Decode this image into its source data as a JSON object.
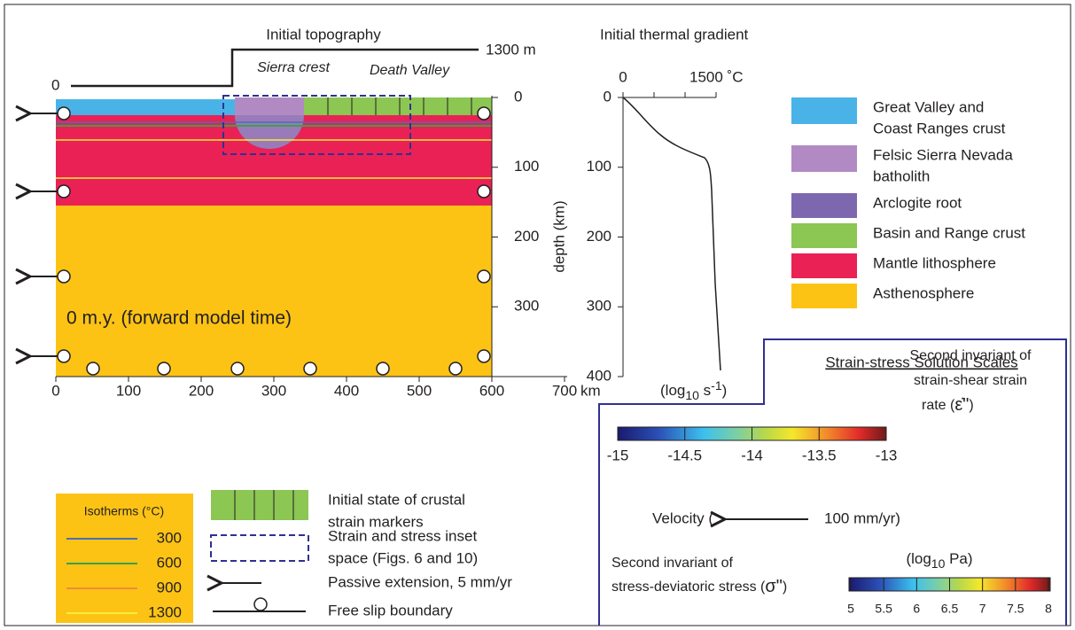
{
  "top_profile": {
    "title": "Initial topography",
    "left_label": "0",
    "right_label": "1300 m",
    "sierra": "Sierra crest",
    "death_valley": "Death Valley"
  },
  "model": {
    "time_label": "0 m.y. (forward model time)",
    "x_ticks": [
      0,
      100,
      200,
      300,
      400,
      500,
      600,
      700
    ],
    "x_unit": "km",
    "depth_ticks": [
      0,
      100,
      200,
      300
    ]
  },
  "thermal": {
    "title": "Initial thermal gradient",
    "temp_ticks": [
      {
        "value": 0,
        "label": "0"
      },
      {
        "value": 1500,
        "label": "1500 ˚C"
      }
    ],
    "depth_ticks": [
      0,
      100,
      200,
      300,
      400
    ],
    "depth_title": "depth (km)"
  },
  "units_legend": [
    {
      "lines": [
        "Great Valley and",
        "Coast Ranges crust"
      ],
      "color": "#49b3e8"
    },
    {
      "lines": [
        "Felsic Sierra Nevada",
        "batholith"
      ],
      "color": "#b18ac3"
    },
    {
      "lines": [
        "Arclogite root"
      ],
      "color": "#7d68b0"
    },
    {
      "lines": [
        "Basin and Range crust"
      ],
      "color": "#8cc653"
    },
    {
      "lines": [
        "Mantle lithosphere"
      ],
      "color": "#ea2155"
    },
    {
      "lines": [
        "Asthenosphere"
      ],
      "color": "#fcc315"
    }
  ],
  "isotherms": {
    "title": "Isotherms (°C)",
    "items": [
      {
        "label": "300",
        "color": "#4a6fb5"
      },
      {
        "label": "600",
        "color": "#3aa14a"
      },
      {
        "label": "900",
        "color": "#f28a3a"
      },
      {
        "label": "1300",
        "color": "#f7ec3a"
      }
    ]
  },
  "symbols": {
    "markers": [
      "Initial state of crustal",
      "strain markers"
    ],
    "inset": [
      "Strain and stress inset",
      "space (Figs. 6 and 10)"
    ],
    "extension": "Passive extension, 5 mm/yr",
    "free_slip": "Free slip boundary"
  },
  "scales": {
    "title": "Strain-stress Solution Scales",
    "strain_unit": [
      "(log",
      "10",
      " s",
      "-1",
      ")"
    ],
    "strain_label": [
      "Second invariant of",
      "strain-shear strain",
      "rate ("
    ],
    "strain_symbol": "ε̇\"",
    "strain_ticks": [
      -15,
      -14.5,
      -14,
      -13.5,
      -13
    ],
    "velocity_left": "Velocity (",
    "velocity_right": "100 mm/yr)",
    "stress_label": [
      "Second invariant of",
      "stress-deviatoric stress ("
    ],
    "stress_symbol": "σ\"",
    "stress_unit": [
      "(log",
      "10",
      " Pa)"
    ],
    "stress_ticks": [
      5,
      5.5,
      6,
      6.5,
      7,
      7.5,
      8
    ]
  }
}
